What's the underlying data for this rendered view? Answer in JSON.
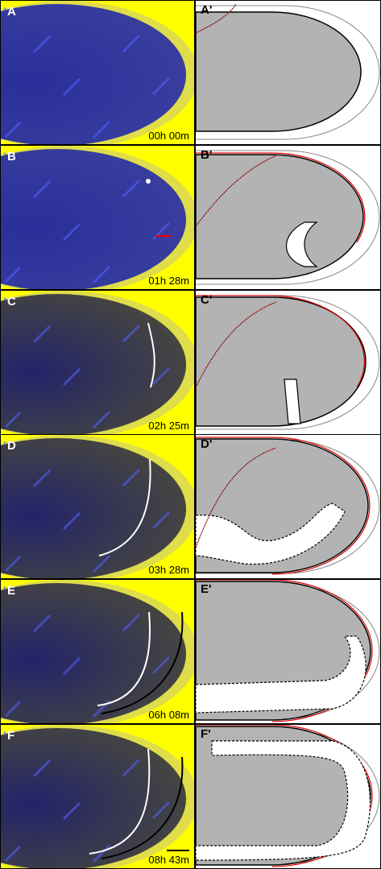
{
  "panels": [
    {
      "label": "A",
      "schematic_label": "A'",
      "time": "00h 00m"
    },
    {
      "label": "B",
      "schematic_label": "B'",
      "time": "01h 28m"
    },
    {
      "label": "C",
      "schematic_label": "C'",
      "time": "02h 25m"
    },
    {
      "label": "D",
      "schematic_label": "D'",
      "time": "03h 28m"
    },
    {
      "label": "E",
      "schematic_label": "E'",
      "time": "06h 08m"
    },
    {
      "label": "F",
      "schematic_label": "F'",
      "time": "08h 43m"
    }
  ]
}
